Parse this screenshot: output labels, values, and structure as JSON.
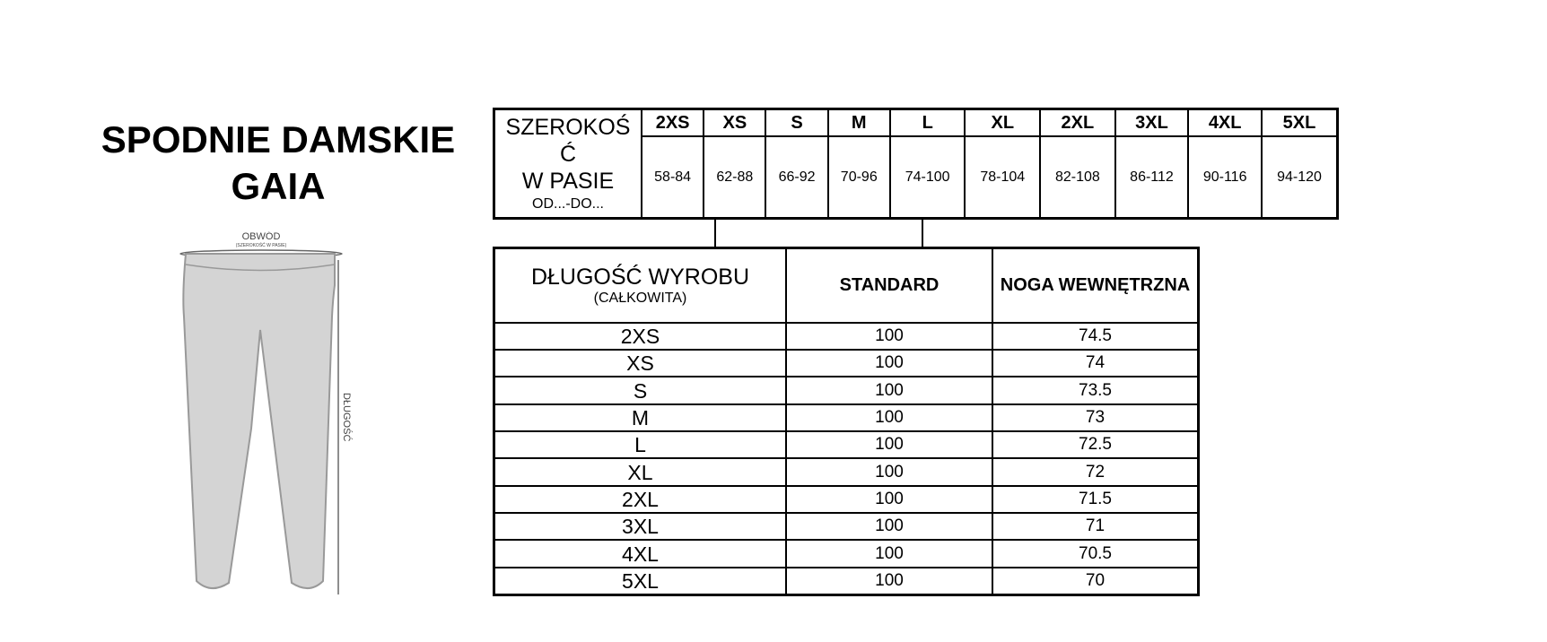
{
  "title": {
    "line1": "SPODNIE DAMSKIE",
    "line2": "GAIA"
  },
  "illustration": {
    "circumference_label": "OBWÓD",
    "circumference_sub": "(SZEROKOŚĆ W PASIE)",
    "length_label": "DŁUGOŚĆ"
  },
  "waist_table": {
    "label_line1": "SZEROKOŚ",
    "label_line2": "Ć",
    "label_line3": "W PASIE",
    "label_sub": "OD...-DO...",
    "sizes": [
      "2XS",
      "XS",
      "S",
      "M",
      "L",
      "XL",
      "2XL",
      "3XL",
      "4XL",
      "5XL"
    ],
    "ranges": [
      "58-84",
      "62-88",
      "66-92",
      "70-96",
      "74-100",
      "78-104",
      "82-108",
      "86-112",
      "90-116",
      "94-120"
    ]
  },
  "length_table": {
    "header": {
      "col1": "DŁUGOŚĆ WYROBU",
      "col1_sub": "(CAŁKOWITA)",
      "col2": "STANDARD",
      "col3": "NOGA WEWNĘTRZNA"
    },
    "rows": [
      {
        "size": "2XS",
        "standard": "100",
        "inseam": "74.5"
      },
      {
        "size": "XS",
        "standard": "100",
        "inseam": "74"
      },
      {
        "size": "S",
        "standard": "100",
        "inseam": "73.5"
      },
      {
        "size": "M",
        "standard": "100",
        "inseam": "73"
      },
      {
        "size": "L",
        "standard": "100",
        "inseam": "72.5"
      },
      {
        "size": "XL",
        "standard": "100",
        "inseam": "72"
      },
      {
        "size": "2XL",
        "standard": "100",
        "inseam": "71.5"
      },
      {
        "size": "3XL",
        "standard": "100",
        "inseam": "71"
      },
      {
        "size": "4XL",
        "standard": "100",
        "inseam": "70.5"
      },
      {
        "size": "5XL",
        "standard": "100",
        "inseam": "70"
      }
    ]
  }
}
